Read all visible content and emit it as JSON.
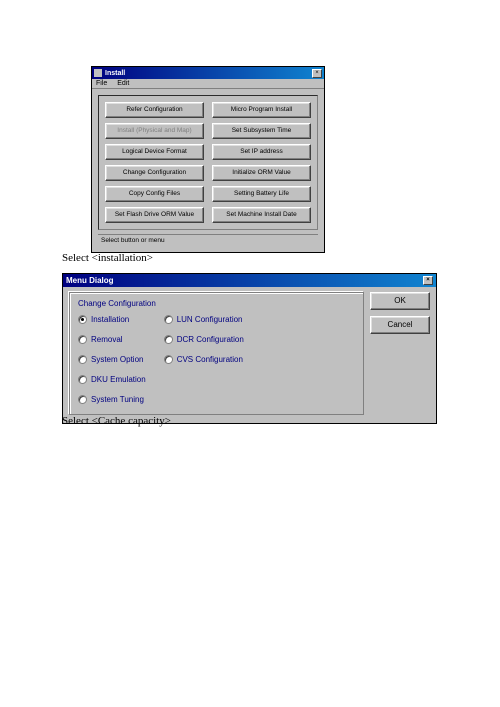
{
  "install_window": {
    "title": "Install",
    "menu": {
      "file": "File",
      "edit": "Edit"
    },
    "buttons": {
      "row0": {
        "left": "Refer Configuration",
        "right": "Micro Program Install"
      },
      "row1": {
        "left": "Install (Physical and Map)",
        "left_disabled": true,
        "right": "Set Subsystem Time"
      },
      "row2": {
        "left": "Logical Device Format",
        "right": "Set IP address"
      },
      "row3": {
        "left": "Change Configuration",
        "right": "Initialize ORM Value"
      },
      "row4": {
        "left": "Copy Config Files",
        "right": "Setting Battery Life"
      },
      "row5": {
        "left": "Set Flash Drive ORM Value",
        "right": "Set Machine Install Date"
      }
    },
    "status": "Select button or menu"
  },
  "caption1": "Select <installation>",
  "dialog": {
    "title": "Menu Dialog",
    "group_title": "Change Configuration",
    "left_options": [
      {
        "label": "Installation",
        "checked": true
      },
      {
        "label": "Removal",
        "checked": false
      },
      {
        "label": "System Option",
        "checked": false
      },
      {
        "label": "DKU Emulation",
        "checked": false
      },
      {
        "label": "System Tuning",
        "checked": false
      }
    ],
    "right_options": [
      {
        "label": "LUN Configuration",
        "checked": false
      },
      {
        "label": "DCR Configuration",
        "checked": false
      },
      {
        "label": "CVS Configuration",
        "checked": false
      }
    ],
    "ok": "OK",
    "cancel": "Cancel"
  },
  "caption2": "Select <Cache capacity>",
  "colors": {
    "titlebar_start": "#000080",
    "titlebar_end": "#1084d0",
    "face": "#c0c0c0",
    "text_blue": "#000080"
  }
}
